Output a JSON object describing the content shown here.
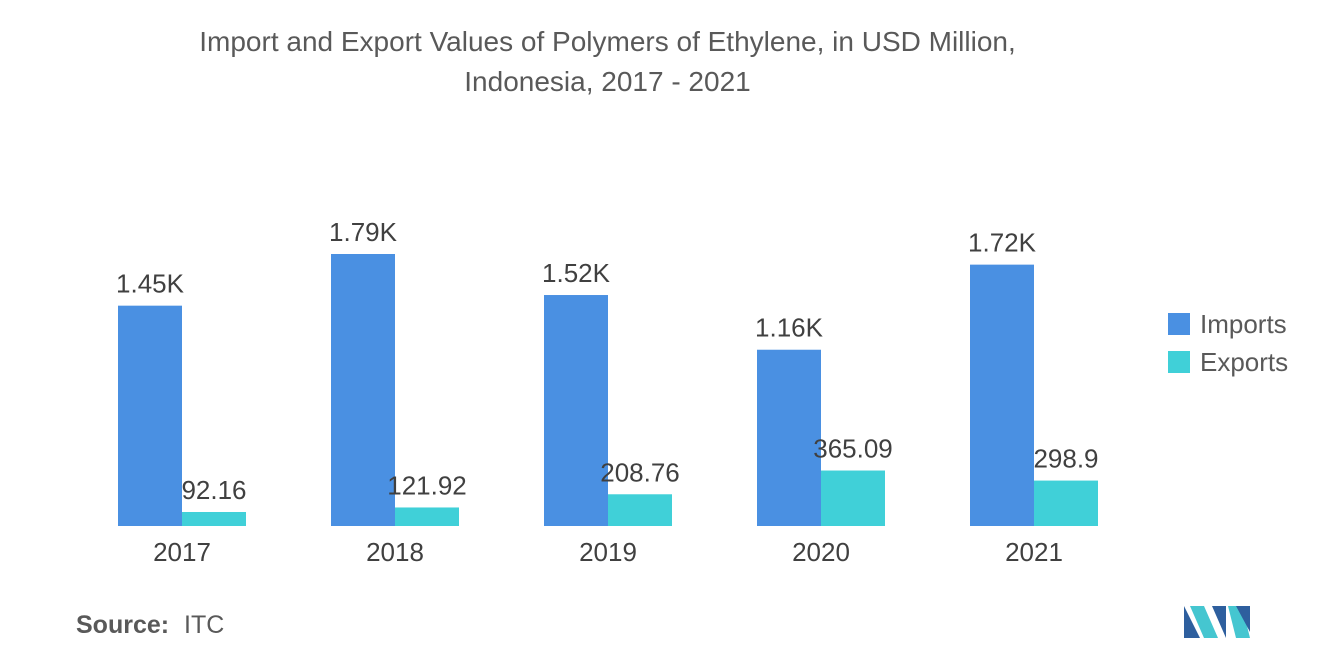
{
  "title_lines": [
    "Import and Export Values of Polymers of Ethylene, in USD Million,",
    "Indonesia, 2017 - 2021"
  ],
  "source": {
    "label": "Source:",
    "value": "ITC"
  },
  "colors": {
    "imports": "#4a90e2",
    "exports": "#40d0d8"
  },
  "chart_data": {
    "type": "bar",
    "title": "Import and Export Values of Polymers of Ethylene, in USD Million, Indonesia, 2017 - 2021",
    "categories": [
      "2017",
      "2018",
      "2019",
      "2020",
      "2021"
    ],
    "series": [
      {
        "name": "Imports",
        "values": [
          1450,
          1790,
          1520,
          1160,
          1720
        ],
        "labels": [
          "1.45K",
          "1.79K",
          "1.52K",
          "1.16K",
          "1.72K"
        ]
      },
      {
        "name": "Exports",
        "values": [
          92.16,
          121.92,
          208.76,
          365.09,
          298.9
        ],
        "labels": [
          "92.16",
          "121.92",
          "208.76",
          "365.09",
          "298.9"
        ]
      }
    ],
    "ylim": [
      0,
      1790
    ],
    "grid": false,
    "legend": "right"
  }
}
